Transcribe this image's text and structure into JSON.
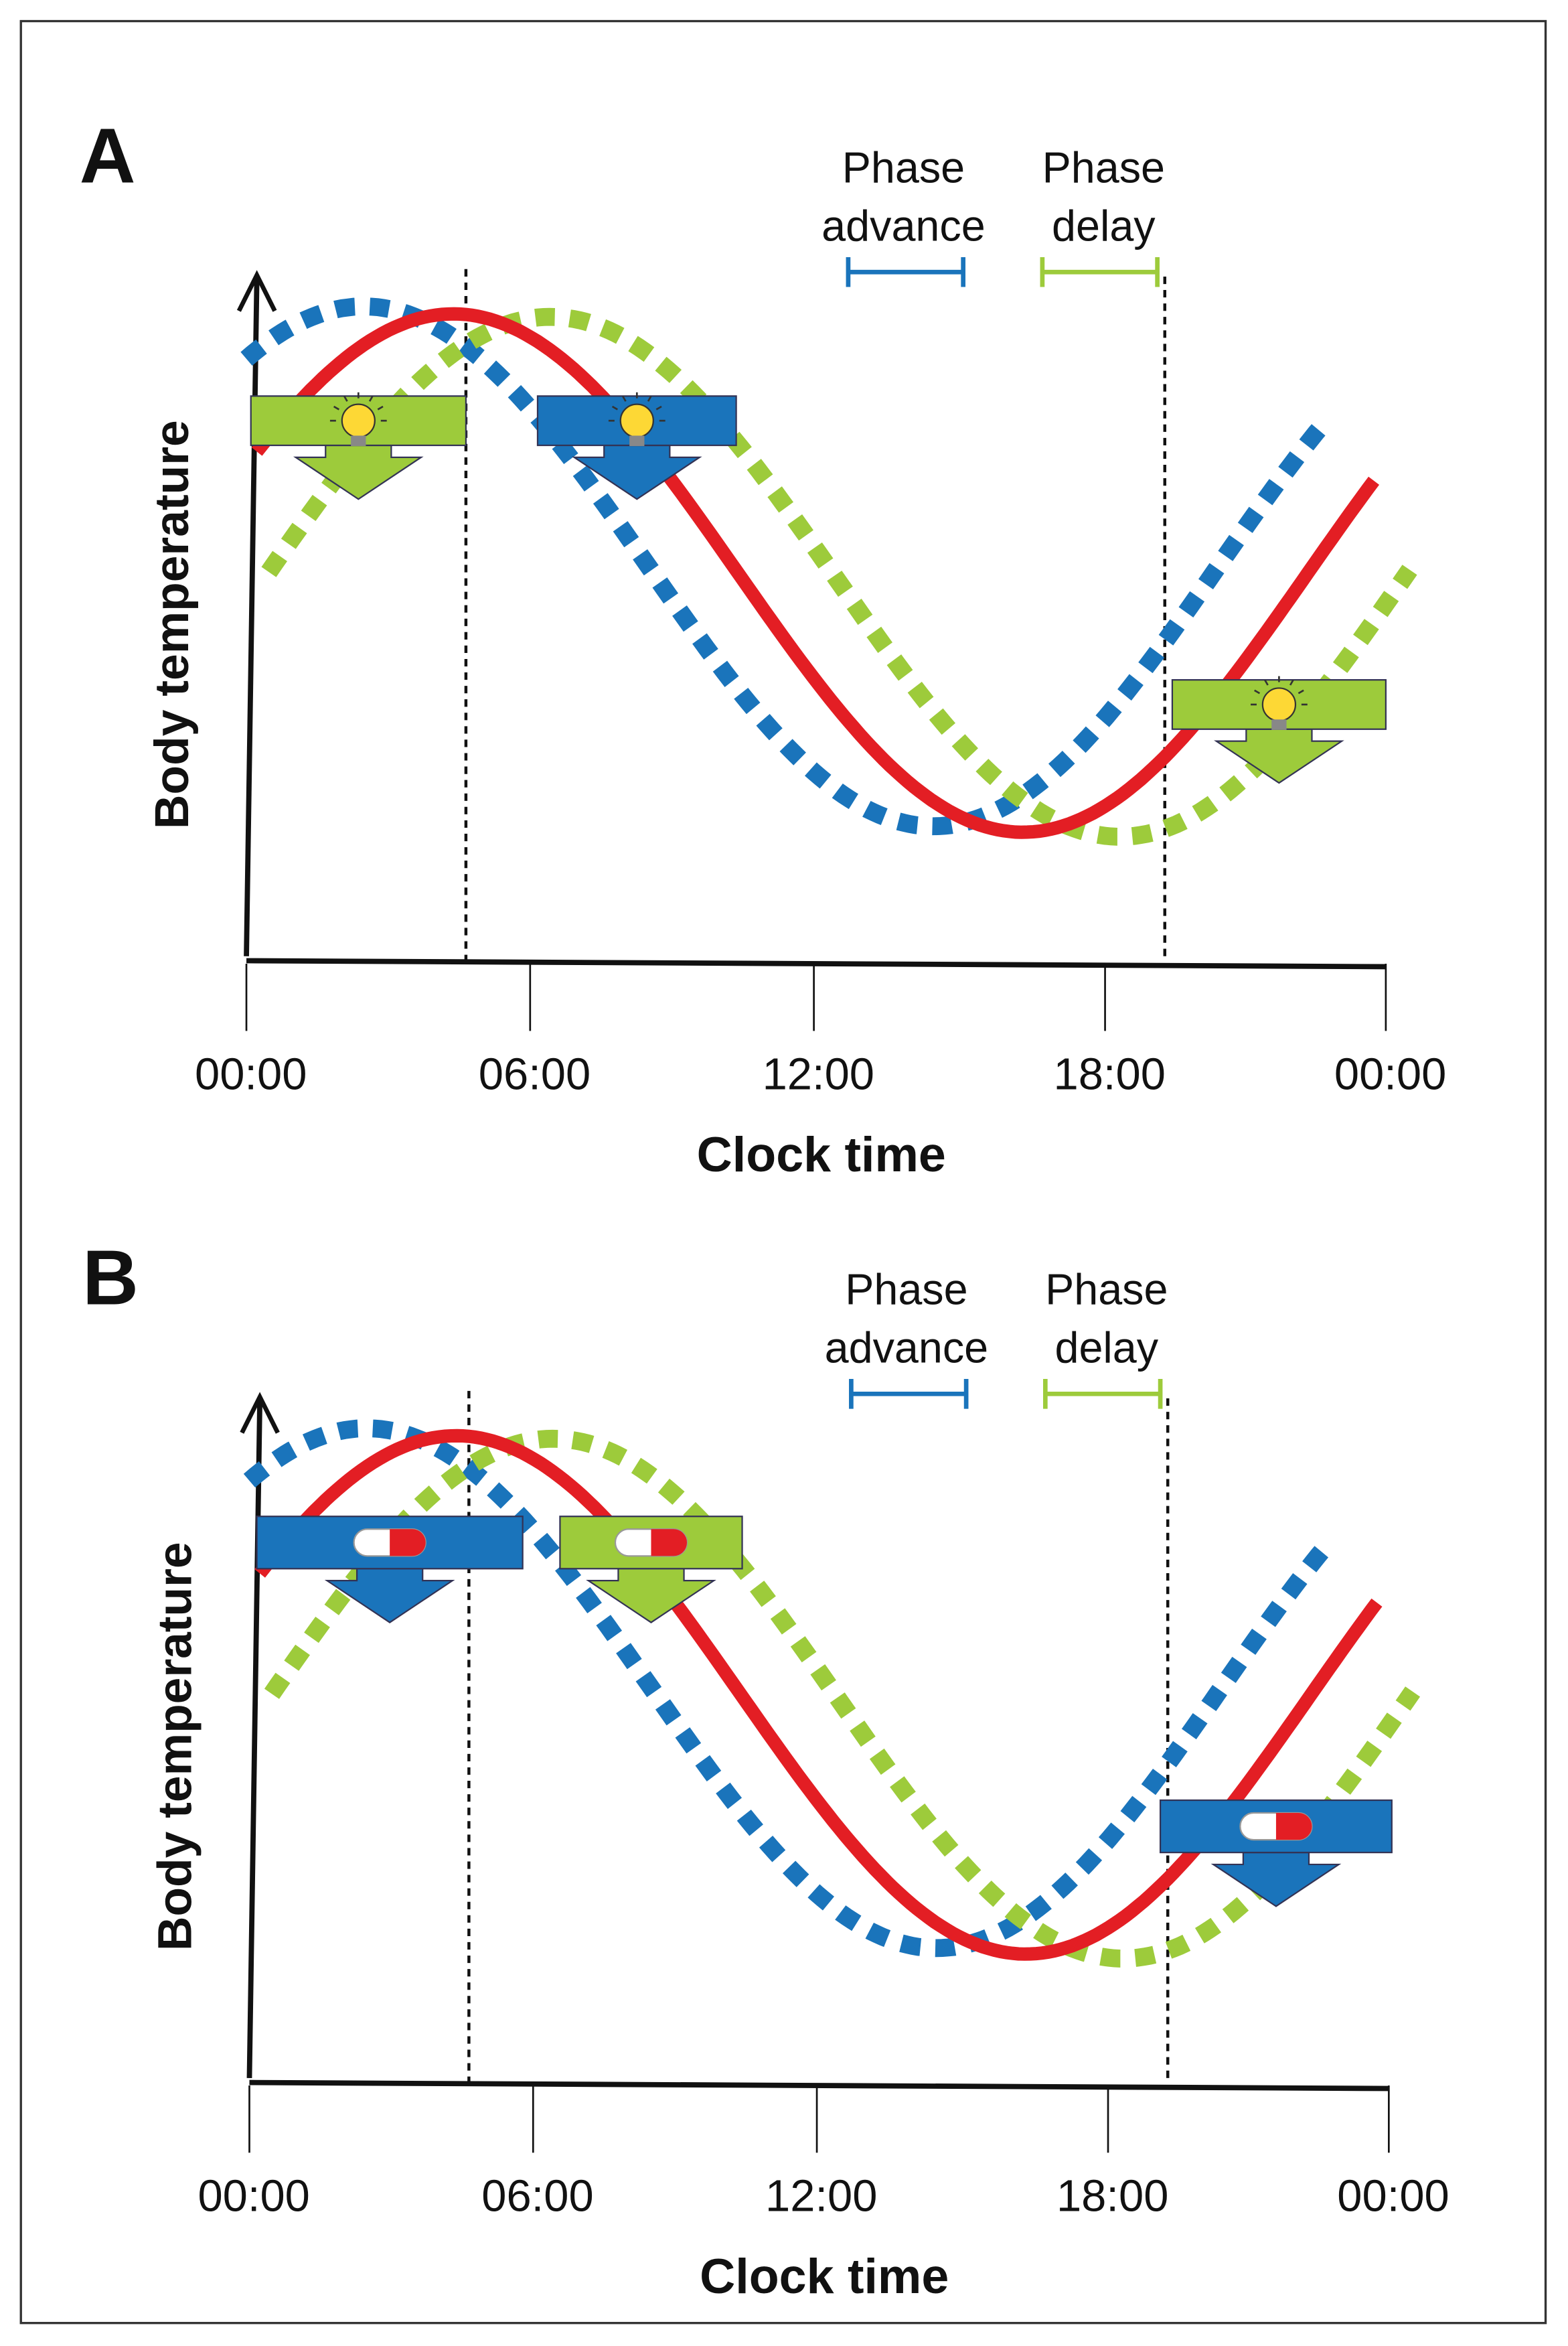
{
  "panels": [
    {
      "letter": "A",
      "y_label": "Body temperature",
      "x_label": "Clock time",
      "x_ticks": [
        "00:00",
        "06:00",
        "12:00",
        "18:00",
        "00:00"
      ],
      "phase_advance": [
        "Phase",
        "advance"
      ],
      "phase_delay": [
        "Phase",
        "delay"
      ],
      "icon": "bulb"
    },
    {
      "letter": "B",
      "y_label": "Body temperature",
      "x_label": "Clock time",
      "x_ticks": [
        "00:00",
        "06:00",
        "12:00",
        "18:00",
        "00:00"
      ],
      "phase_advance": [
        "Phase",
        "advance"
      ],
      "phase_delay": [
        "Phase",
        "delay"
      ],
      "icon": "pill"
    }
  ]
}
